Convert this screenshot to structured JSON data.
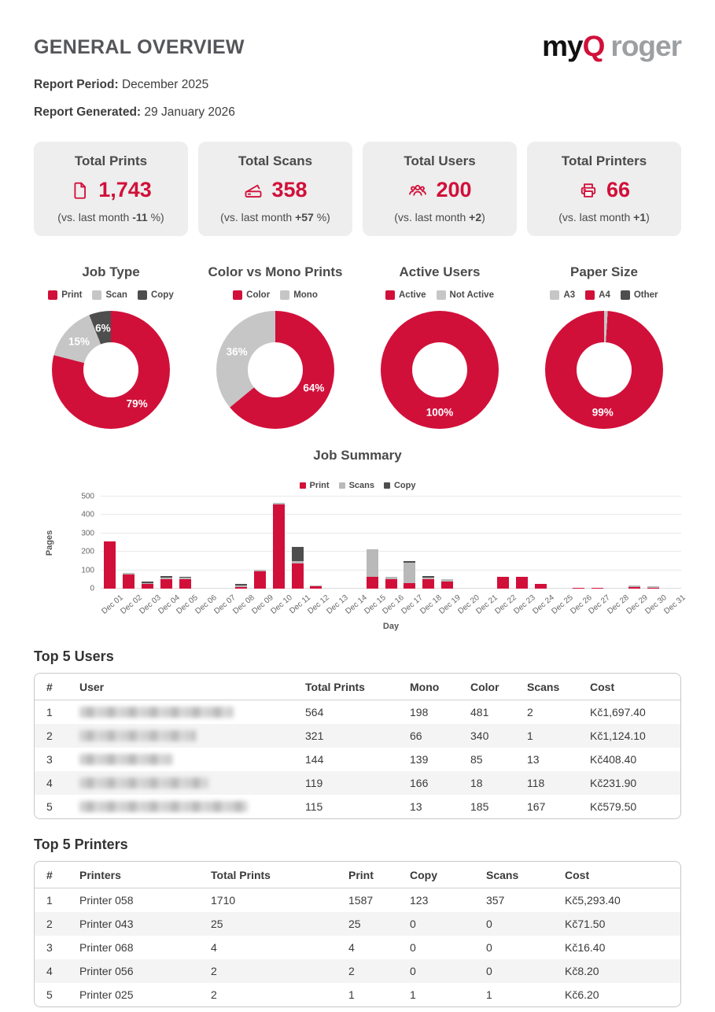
{
  "header": {
    "title": "GENERAL OVERVIEW",
    "logo": {
      "my": "my",
      "q": "Q",
      "roger": "roger"
    },
    "report_period_label": "Report Period:",
    "report_period": "December 2025",
    "report_generated_label": "Report Generated:",
    "report_generated": "29 January 2026"
  },
  "colors": {
    "accent": "#d1103a",
    "scan_gray": "#c6c6c6",
    "copy_dark": "#4e4e4e",
    "bar_scan_gray": "#b9b9b9",
    "card_bg": "#eeeeee",
    "logo_gray": "#9d9fa2"
  },
  "stat_cards": [
    {
      "title": "Total Prints",
      "icon": "document-icon",
      "value": "1,743",
      "caption_pre": "(vs. last month ",
      "delta": "-11",
      "caption_post": " %)"
    },
    {
      "title": "Total Scans",
      "icon": "scanner-icon",
      "value": "358",
      "caption_pre": "(vs. last month ",
      "delta": "+57",
      "caption_post": " %)"
    },
    {
      "title": "Total Users",
      "icon": "users-icon",
      "value": "200",
      "caption_pre": "(vs. last month ",
      "delta": "+2",
      "caption_post": ")"
    },
    {
      "title": "Total Printers",
      "icon": "printer-icon",
      "value": "66",
      "caption_pre": "(vs. last month ",
      "delta": "+1",
      "caption_post": ")"
    }
  ],
  "chart_data": [
    {
      "type": "pie",
      "subtype": "donut",
      "title": "Job Type",
      "legend": [
        {
          "label": "Print",
          "color": "#d1103a"
        },
        {
          "label": "Scan",
          "color": "#c6c6c6"
        },
        {
          "label": "Copy",
          "color": "#4e4e4e"
        }
      ],
      "slices": [
        {
          "label": "Print",
          "pct": 79,
          "color": "#d1103a"
        },
        {
          "label": "Scan",
          "pct": 15,
          "color": "#c6c6c6"
        },
        {
          "label": "Copy",
          "pct": 6,
          "color": "#4e4e4e"
        }
      ]
    },
    {
      "type": "pie",
      "subtype": "donut",
      "title": "Color vs Mono Prints",
      "legend": [
        {
          "label": "Color",
          "color": "#d1103a"
        },
        {
          "label": "Mono",
          "color": "#c6c6c6"
        }
      ],
      "slices": [
        {
          "label": "Color",
          "pct": 64,
          "color": "#d1103a"
        },
        {
          "label": "Mono",
          "pct": 36,
          "color": "#c6c6c6"
        }
      ]
    },
    {
      "type": "pie",
      "subtype": "donut",
      "title": "Active Users",
      "legend": [
        {
          "label": "Active",
          "color": "#d1103a"
        },
        {
          "label": "Not Active",
          "color": "#c6c6c6"
        }
      ],
      "slices": [
        {
          "label": "Active",
          "pct": 100,
          "color": "#d1103a"
        },
        {
          "label": "Not Active",
          "pct": 0,
          "color": "#c6c6c6"
        }
      ]
    },
    {
      "type": "pie",
      "subtype": "donut",
      "title": "Paper Size",
      "legend": [
        {
          "label": "A3",
          "color": "#c6c6c6"
        },
        {
          "label": "A4",
          "color": "#d1103a"
        },
        {
          "label": "Other",
          "color": "#4e4e4e"
        }
      ],
      "slices": [
        {
          "label": "A3",
          "pct": 1,
          "color": "#c6c6c6"
        },
        {
          "label": "A4",
          "pct": 99,
          "color": "#d1103a"
        },
        {
          "label": "Other",
          "pct": 0,
          "color": "#4e4e4e"
        }
      ]
    },
    {
      "type": "bar",
      "subtype": "stacked",
      "title": "Job Summary",
      "xlabel": "Day",
      "ylabel": "Pages",
      "ylim": [
        0,
        500
      ],
      "yticks": [
        0,
        100,
        200,
        300,
        400,
        500
      ],
      "grid": true,
      "legend_position": "top",
      "categories": [
        "Dec 01",
        "Dec 02",
        "Dec 03",
        "Dec 04",
        "Dec 05",
        "Dec 06",
        "Dec 07",
        "Dec 08",
        "Dec 09",
        "Dec 10",
        "Dec 11",
        "Dec 12",
        "Dec 13",
        "Dec 14",
        "Dec 15",
        "Dec 16",
        "Dec 17",
        "Dec 18",
        "Dec 19",
        "Dec 20",
        "Dec 21",
        "Dec 22",
        "Dec 23",
        "Dec 24",
        "Dec 25",
        "Dec 26",
        "Dec 27",
        "Dec 28",
        "Dec 29",
        "Dec 30",
        "Dec 31"
      ],
      "series": [
        {
          "name": "Print",
          "color": "#d1103a",
          "values": [
            255,
            78,
            25,
            52,
            50,
            0,
            0,
            10,
            92,
            458,
            137,
            12,
            0,
            0,
            65,
            52,
            30,
            52,
            40,
            0,
            0,
            65,
            65,
            25,
            0,
            6,
            3,
            0,
            8,
            2,
            0
          ]
        },
        {
          "name": "Scans",
          "color": "#b9b9b9",
          "values": [
            0,
            4,
            2,
            8,
            8,
            0,
            0,
            2,
            12,
            4,
            12,
            7,
            0,
            0,
            150,
            12,
            112,
            8,
            12,
            0,
            0,
            0,
            0,
            0,
            0,
            0,
            0,
            0,
            8,
            2,
            0
          ]
        },
        {
          "name": "Copy",
          "color": "#4e4e4e",
          "values": [
            0,
            0,
            8,
            8,
            2,
            0,
            0,
            10,
            0,
            0,
            76,
            0,
            0,
            0,
            0,
            0,
            6,
            6,
            0,
            0,
            0,
            0,
            0,
            0,
            0,
            0,
            0,
            0,
            0,
            0,
            0
          ]
        }
      ]
    }
  ],
  "users_table": {
    "heading": "Top 5 Users",
    "headers": [
      "#",
      "User",
      "Total Prints",
      "Mono",
      "Color",
      "Scans",
      "Cost"
    ],
    "redacted_column": 1,
    "rows": [
      [
        "1",
        "",
        "564",
        "198",
        "481",
        "2",
        "Kč1,697.40"
      ],
      [
        "2",
        "",
        "321",
        "66",
        "340",
        "1",
        "Kč1,124.10"
      ],
      [
        "3",
        "",
        "144",
        "139",
        "85",
        "13",
        "Kč408.40"
      ],
      [
        "4",
        "",
        "119",
        "166",
        "18",
        "118",
        "Kč231.90"
      ],
      [
        "5",
        "",
        "115",
        "13",
        "185",
        "167",
        "Kč579.50"
      ]
    ]
  },
  "printers_table": {
    "heading": "Top 5 Printers",
    "headers": [
      "#",
      "Printers",
      "Total Prints",
      "Print",
      "Copy",
      "Scans",
      "Cost"
    ],
    "rows": [
      [
        "1",
        "Printer 058",
        "1710",
        "1587",
        "123",
        "357",
        "Kč5,293.40"
      ],
      [
        "2",
        "Printer 043",
        "25",
        "25",
        "0",
        "0",
        "Kč71.50"
      ],
      [
        "3",
        "Printer 068",
        "4",
        "4",
        "0",
        "0",
        "Kč16.40"
      ],
      [
        "4",
        "Printer 056",
        "2",
        "2",
        "0",
        "0",
        "Kč8.20"
      ],
      [
        "5",
        "Printer 025",
        "2",
        "1",
        "1",
        "1",
        "Kč6.20"
      ]
    ]
  }
}
